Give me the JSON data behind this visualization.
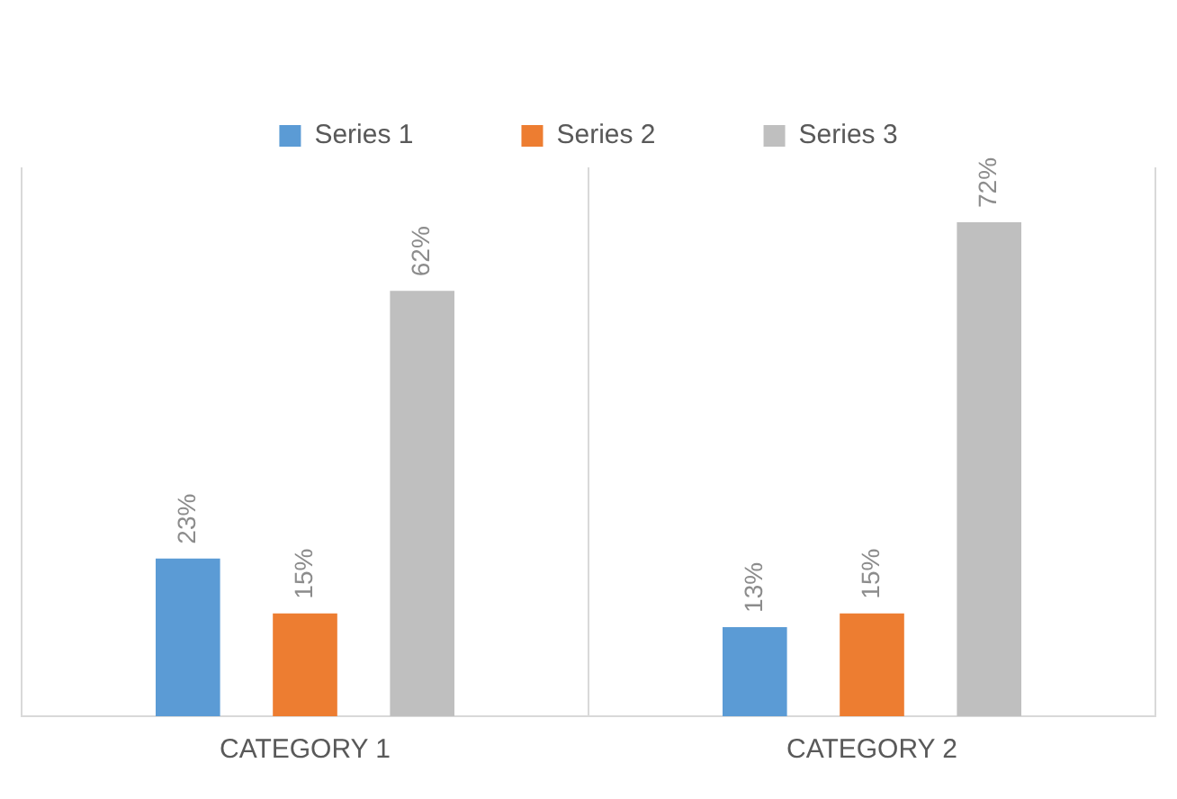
{
  "chart_data": {
    "type": "bar",
    "categories": [
      "CATEGORY 1",
      "CATEGORY 2"
    ],
    "series": [
      {
        "name": "Series 1",
        "color": "#5b9bd5",
        "values": [
          23,
          13
        ],
        "value_labels": [
          "23%",
          "13%"
        ]
      },
      {
        "name": "Series 2",
        "color": "#ed7d31",
        "values": [
          15,
          15
        ],
        "value_labels": [
          "15%",
          "15%"
        ]
      },
      {
        "name": "Series 3",
        "color": "#bfbfbf",
        "values": [
          62,
          72
        ],
        "value_labels": [
          "62%",
          "72%"
        ]
      }
    ],
    "ylim": [
      0,
      80
    ],
    "tick_labels": "x",
    "grid": "x",
    "legend": "top"
  }
}
